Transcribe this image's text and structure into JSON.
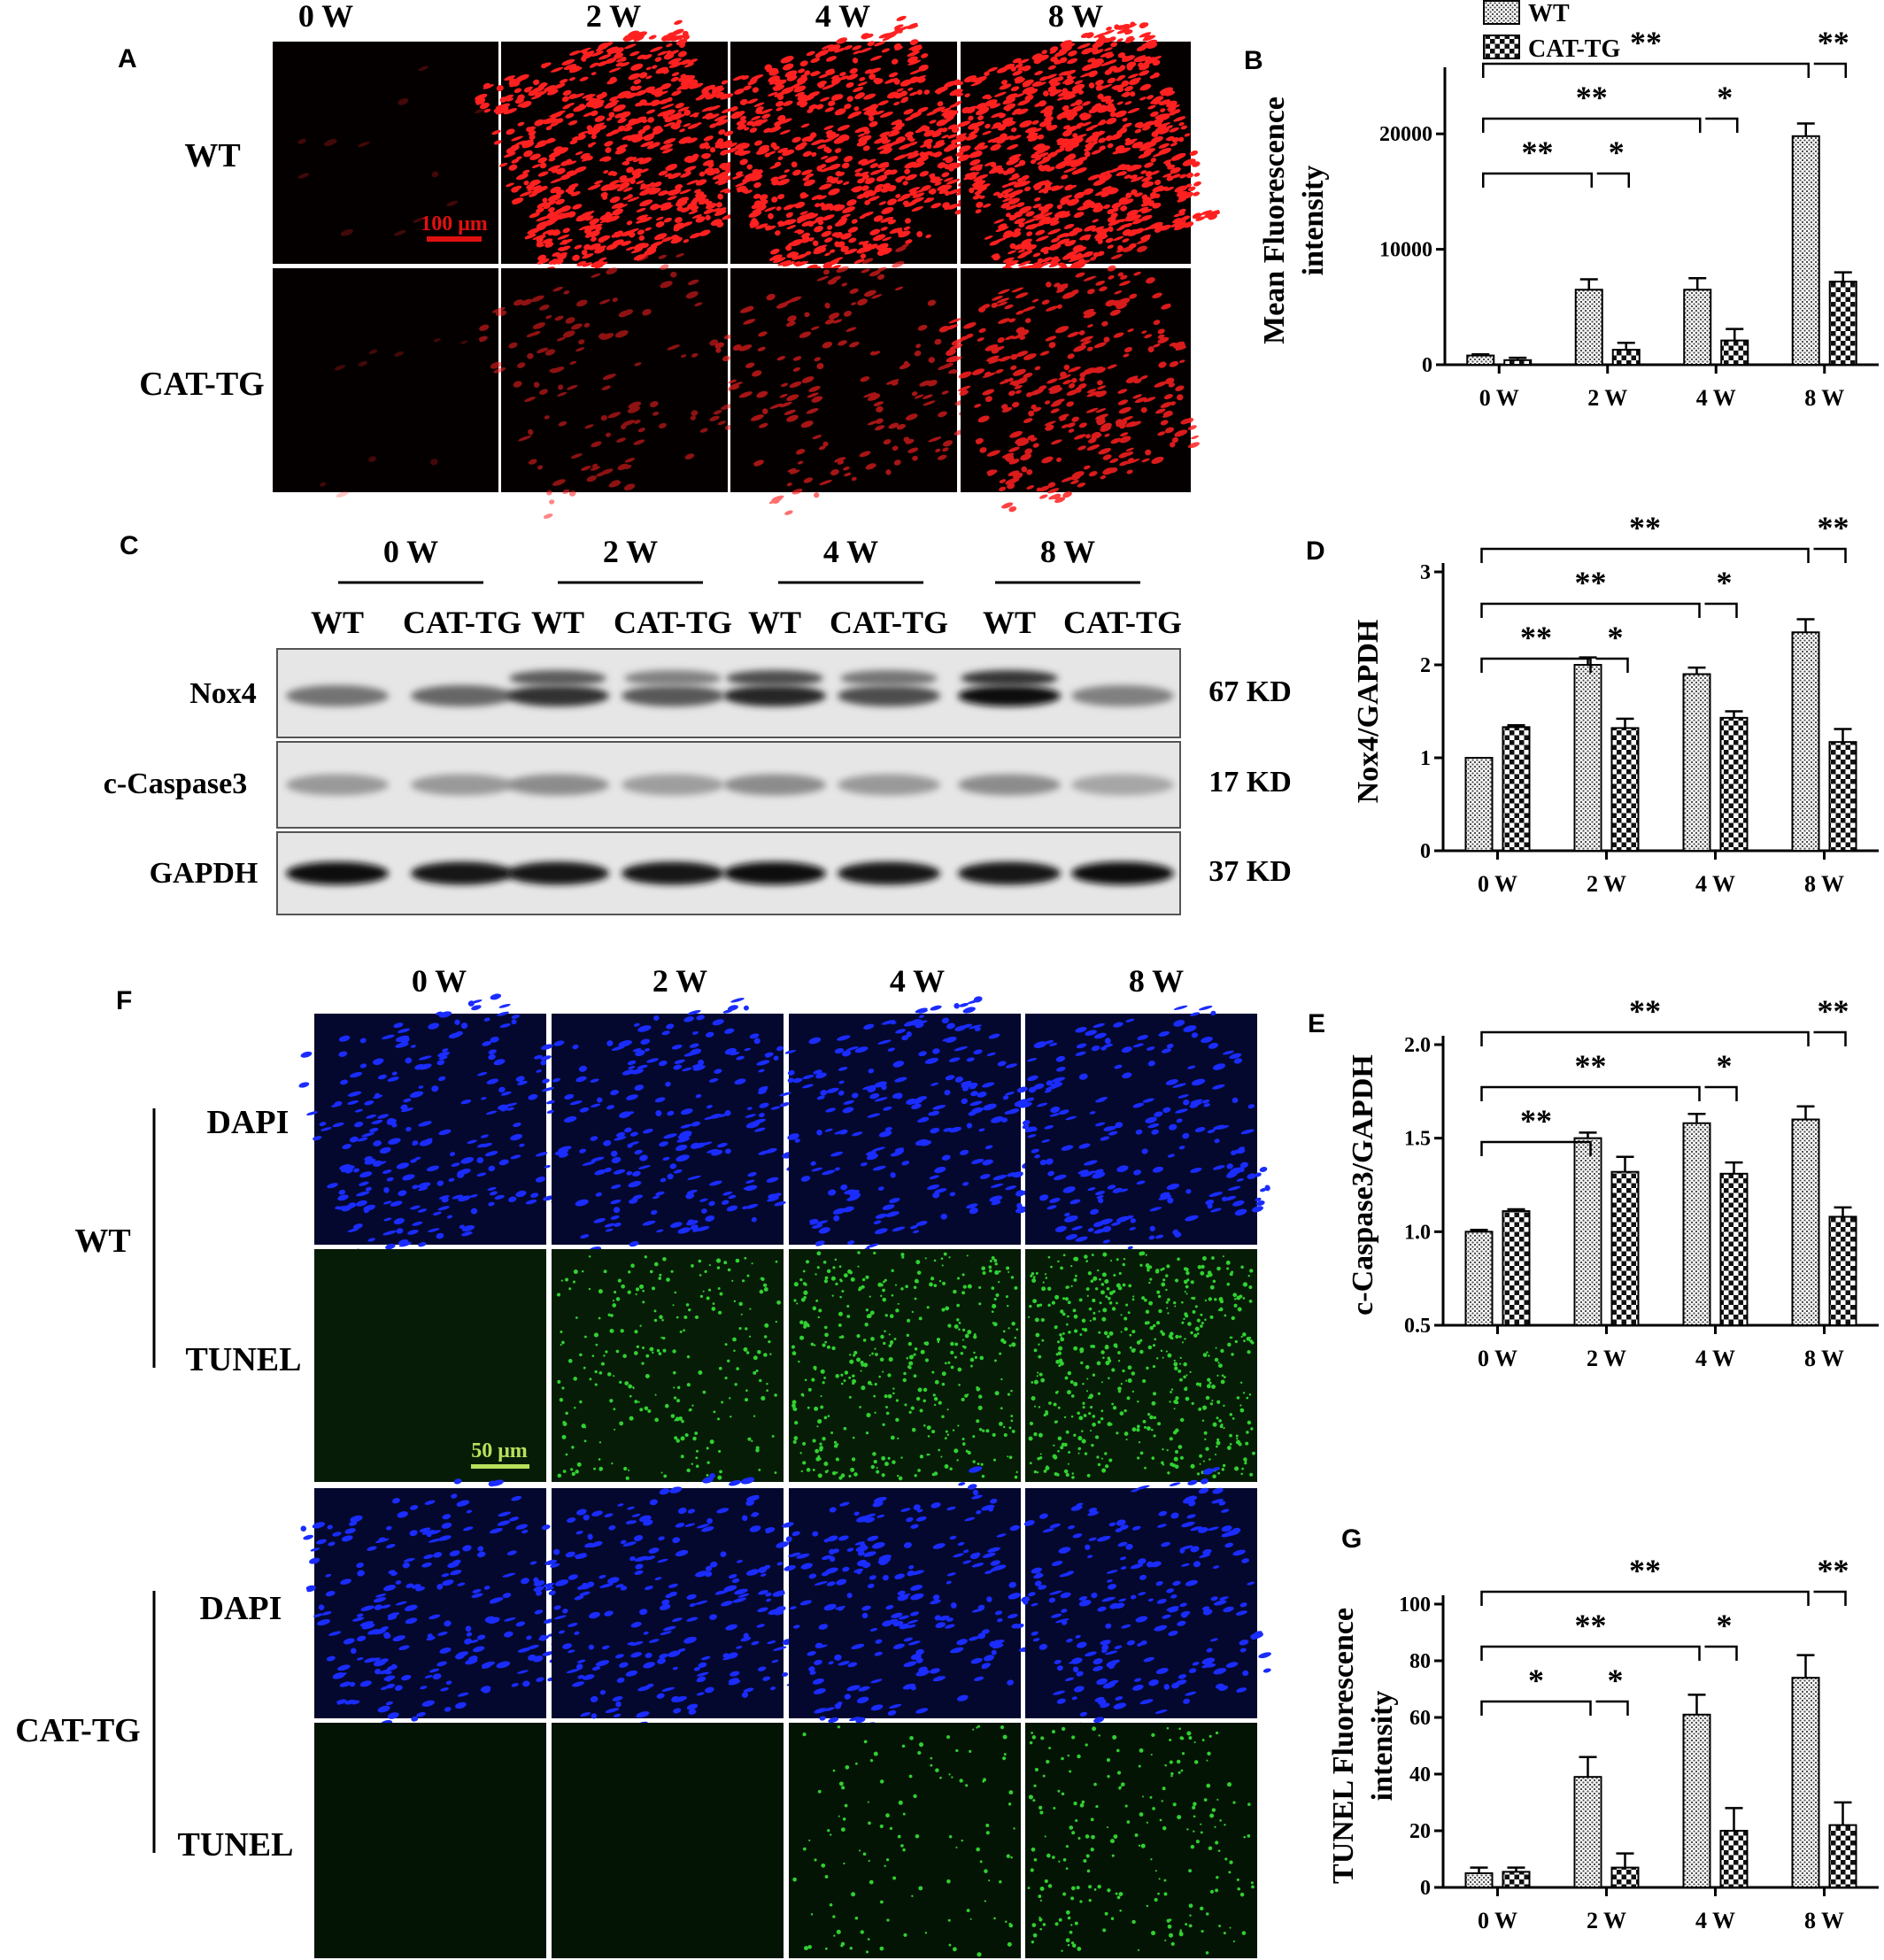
{
  "panels": {
    "A": {
      "letter": "A",
      "time_headers": [
        "0 W",
        "2 W",
        "4 W",
        "8 W"
      ],
      "rows": [
        "WT",
        "CAT-TG"
      ],
      "scale_bar": "100 μm",
      "stain_color": "#ff2020"
    },
    "C": {
      "letter": "C",
      "time_headers": [
        "0 W",
        "2 W",
        "4 W",
        "8 W"
      ],
      "lanes": [
        "WT",
        "CAT-TG",
        "WT",
        "CAT-TG",
        "WT",
        "CAT-TG",
        "WT",
        "CAT-TG"
      ],
      "blots": [
        {
          "protein": "Nox4",
          "size": "67 KD"
        },
        {
          "protein": "c-Caspase3",
          "size": "17 KD"
        },
        {
          "protein": "GAPDH",
          "size": "37 KD"
        }
      ]
    },
    "F": {
      "letter": "F",
      "time_headers": [
        "0 W",
        "2 W",
        "4 W",
        "8 W"
      ],
      "groups": [
        "WT",
        "CAT-TG"
      ],
      "stains": [
        "DAPI",
        "TUNEL"
      ],
      "scale_bar": "50 μm",
      "dapi_color": "#1a2cff",
      "tunel_color": "#3cff3c"
    }
  },
  "legend": {
    "series": [
      "WT",
      "CAT-TG"
    ]
  },
  "chart_data": [
    {
      "id": "B",
      "letter": "B",
      "type": "bar",
      "categories": [
        "0 W",
        "2 W",
        "4 W",
        "8 W"
      ],
      "ylabel": "Mean Fluorescence intensity",
      "ylim": [
        0,
        25000
      ],
      "yticks": [
        0,
        10000,
        20000
      ],
      "series": [
        {
          "name": "WT",
          "values": [
            800,
            6500,
            6500,
            19800
          ],
          "errors": [
            100,
            900,
            1000,
            1100
          ]
        },
        {
          "name": "CAT-TG",
          "values": [
            400,
            1300,
            2100,
            7200
          ],
          "errors": [
            200,
            600,
            1000,
            800
          ]
        }
      ],
      "significance": [
        {
          "from": 0,
          "to": 3,
          "label": "**"
        },
        {
          "from": 0,
          "to": 2,
          "label": "**"
        },
        {
          "from": 0,
          "to": 1,
          "label": "**"
        },
        {
          "pair": 1,
          "label": "*"
        },
        {
          "pair": 2,
          "label": "*"
        },
        {
          "pair": 3,
          "label": "**"
        }
      ]
    },
    {
      "id": "D",
      "letter": "D",
      "type": "bar",
      "categories": [
        "0 W",
        "2 W",
        "4 W",
        "8 W"
      ],
      "ylabel": "Nox4/GAPDH",
      "ylim": [
        0,
        3
      ],
      "yticks": [
        0,
        1,
        2,
        3
      ],
      "series": [
        {
          "name": "WT",
          "values": [
            1.0,
            2.0,
            1.9,
            2.35
          ],
          "errors": [
            0.0,
            0.08,
            0.07,
            0.14
          ]
        },
        {
          "name": "CAT-TG",
          "values": [
            1.33,
            1.32,
            1.43,
            1.17
          ],
          "errors": [
            0.02,
            0.1,
            0.07,
            0.14
          ]
        }
      ],
      "significance": [
        {
          "from": 0,
          "to": 3,
          "label": "**"
        },
        {
          "from": 0,
          "to": 2,
          "label": "**"
        },
        {
          "from": 0,
          "to": 1,
          "label": "**"
        },
        {
          "pair": 1,
          "label": "*"
        },
        {
          "pair": 2,
          "label": "*"
        },
        {
          "pair": 3,
          "label": "**"
        }
      ]
    },
    {
      "id": "E",
      "letter": "E",
      "type": "bar",
      "categories": [
        "0 W",
        "2 W",
        "4 W",
        "8 W"
      ],
      "ylabel": "c-Caspase3/GAPDH",
      "ylim": [
        0.5,
        2.0
      ],
      "yticks": [
        0.5,
        1.0,
        1.5,
        2.0
      ],
      "series": [
        {
          "name": "WT",
          "values": [
            1.0,
            1.5,
            1.58,
            1.6
          ],
          "errors": [
            0.01,
            0.03,
            0.05,
            0.07
          ]
        },
        {
          "name": "CAT-TG",
          "values": [
            1.11,
            1.32,
            1.31,
            1.08
          ],
          "errors": [
            0.01,
            0.08,
            0.06,
            0.05
          ]
        }
      ],
      "significance": [
        {
          "from": 0,
          "to": 3,
          "label": "**"
        },
        {
          "from": 0,
          "to": 2,
          "label": "**"
        },
        {
          "from": 0,
          "to": 1,
          "label": "**"
        },
        {
          "pair": 2,
          "label": "*"
        },
        {
          "pair": 3,
          "label": "**"
        }
      ]
    },
    {
      "id": "G",
      "letter": "G",
      "type": "bar",
      "categories": [
        "0 W",
        "2 W",
        "4 W",
        "8 W"
      ],
      "ylabel": "TUNEL Fluorescence intensity",
      "ylim": [
        0,
        100
      ],
      "yticks": [
        0,
        20,
        40,
        60,
        80,
        100
      ],
      "series": [
        {
          "name": "WT",
          "values": [
            5,
            39,
            61,
            74
          ],
          "errors": [
            2,
            7,
            7,
            8
          ]
        },
        {
          "name": "CAT-TG",
          "values": [
            5.5,
            7,
            20,
            22
          ],
          "errors": [
            1.5,
            5,
            8,
            8
          ]
        }
      ],
      "significance": [
        {
          "from": 0,
          "to": 3,
          "label": "**"
        },
        {
          "from": 0,
          "to": 2,
          "label": "**"
        },
        {
          "from": 0,
          "to": 1,
          "label": "*"
        },
        {
          "pair": 1,
          "label": "*"
        },
        {
          "pair": 2,
          "label": "*"
        },
        {
          "pair": 3,
          "label": "**"
        }
      ]
    }
  ]
}
